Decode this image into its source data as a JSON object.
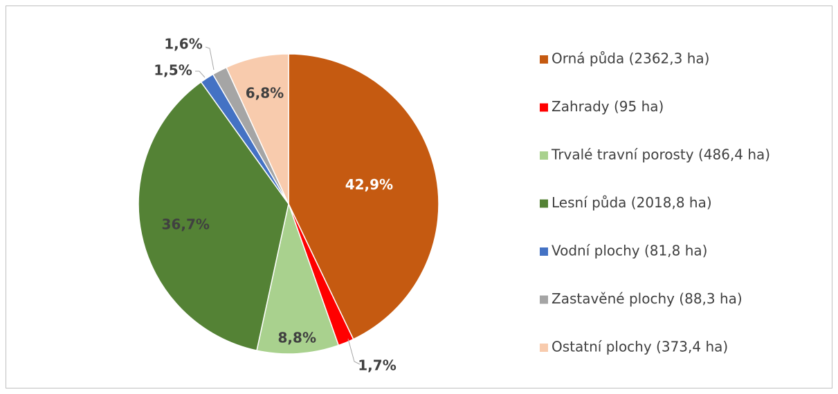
{
  "chart_data": {
    "type": "pie",
    "categories": [
      "Orná půda (2362,3 ha)",
      "Zahrady (95 ha)",
      "Trvalé travní porosty (486,4 ha)",
      "Lesní půda (2018,8 ha)",
      "Vodní plochy (81,8 ha)",
      "Zastavěné plochy (88,3 ha)",
      "Ostatní plochy (373,4 ha)"
    ],
    "values": [
      42.9,
      1.7,
      8.8,
      36.7,
      1.5,
      1.6,
      6.8
    ],
    "value_labels": [
      "42,9%",
      "1,7%",
      "8,8%",
      "36,7%",
      "1,5%",
      "1,6%",
      "6,8%"
    ],
    "colors": [
      "#C55A11",
      "#FF0000",
      "#A9D18E",
      "#548235",
      "#4472C4",
      "#A5A5A5",
      "#F8CBAD"
    ],
    "legend": "right"
  }
}
